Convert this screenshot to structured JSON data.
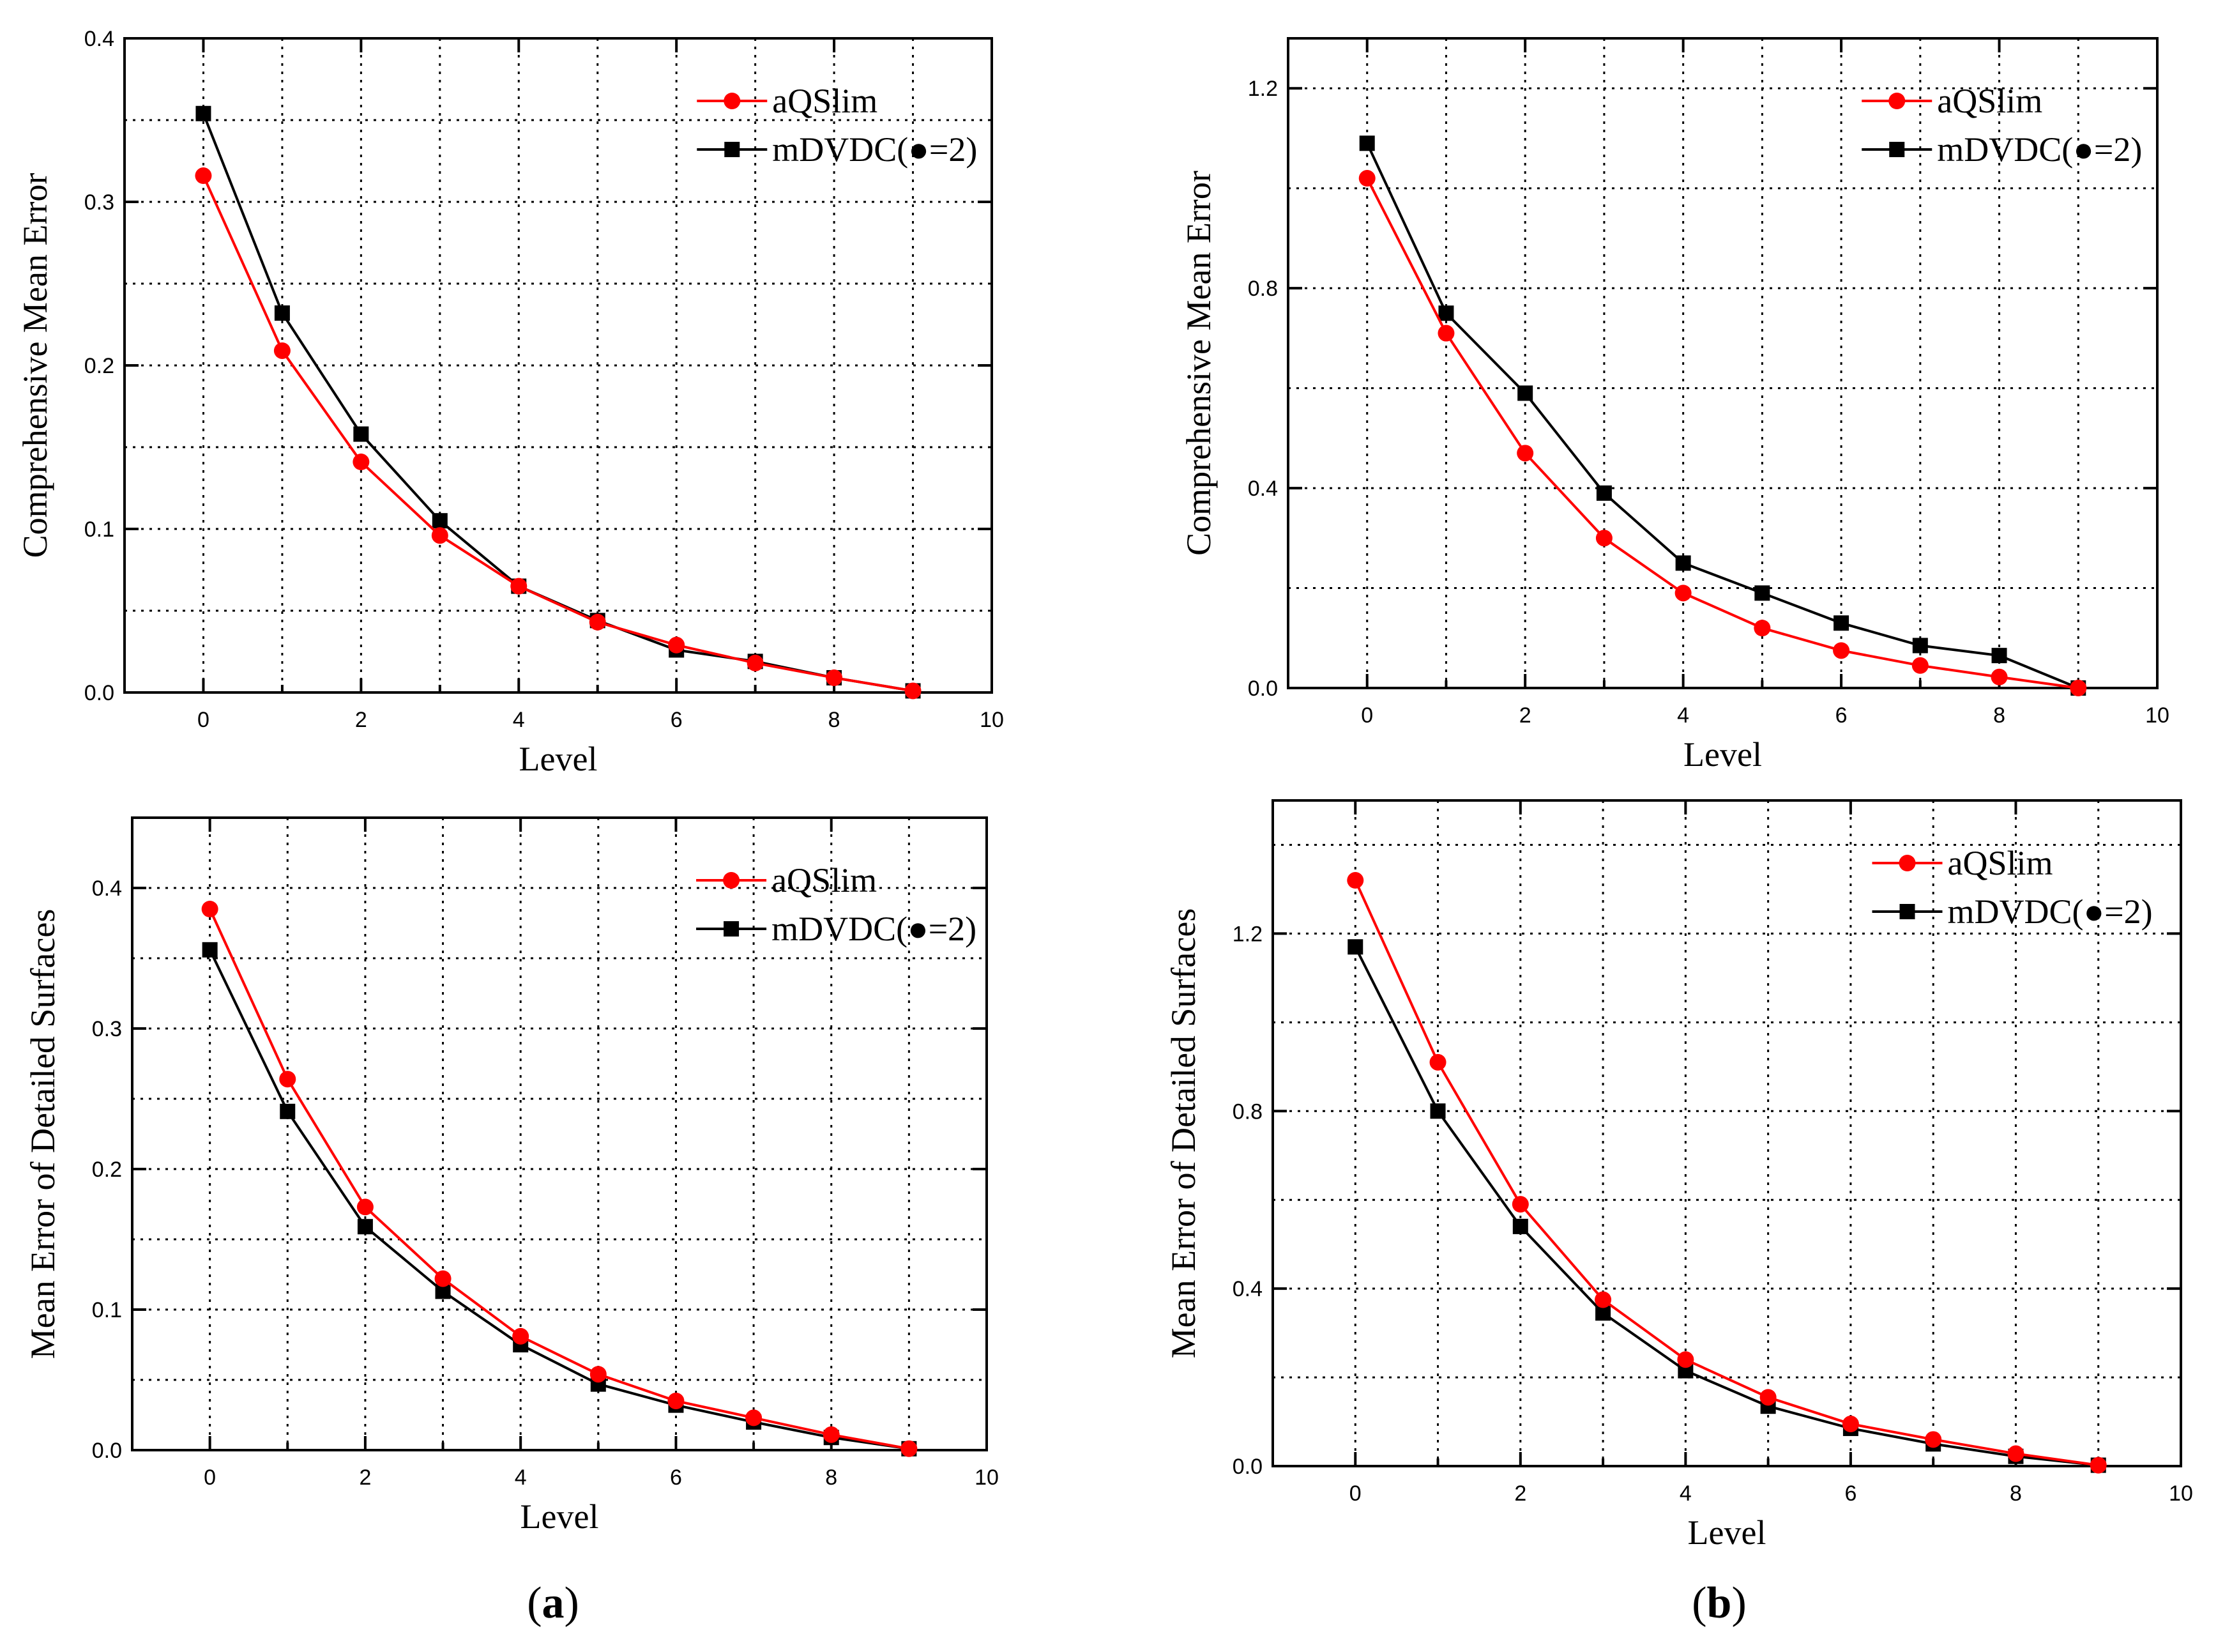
{
  "chart_data": [
    {
      "type": "line",
      "title": "",
      "xlabel": "Level",
      "ylabel": "Comprehensive Mean Error",
      "xlim": [
        -1,
        10
      ],
      "ylim": [
        0,
        0.4
      ],
      "xticks": [
        "0",
        "2",
        "4",
        "6",
        "8",
        "10"
      ],
      "yticks": [
        "0.0",
        "0.1",
        "0.2",
        "0.3",
        "0.4"
      ],
      "ytick_values": [
        0,
        0.1,
        0.2,
        0.3,
        0.4
      ],
      "grid": true,
      "legend": "top-right",
      "x": [
        0,
        1,
        2,
        3,
        4,
        5,
        6,
        7,
        8,
        9
      ],
      "series": [
        {
          "name": "aQSlim",
          "color": "#ff0000",
          "marker": "circle",
          "values": [
            0.316,
            0.209,
            0.141,
            0.096,
            0.065,
            0.043,
            0.029,
            0.018,
            0.009,
            0.001
          ]
        },
        {
          "name": "mDVDC(●=2)",
          "color": "#000000",
          "marker": "square",
          "values": [
            0.354,
            0.232,
            0.158,
            0.105,
            0.065,
            0.044,
            0.026,
            0.019,
            0.009,
            0.001
          ]
        }
      ]
    },
    {
      "type": "line",
      "title": "",
      "xlabel": "Level",
      "ylabel": "Comprehensive Mean Error",
      "xlim": [
        -1,
        10
      ],
      "ylim": [
        0,
        1.3
      ],
      "xticks": [
        "0",
        "2",
        "4",
        "6",
        "8",
        "10"
      ],
      "yticks": [
        "0.0",
        "0.4",
        "0.8",
        "1.2"
      ],
      "ytick_values": [
        0,
        0.4,
        0.8,
        1.2
      ],
      "grid": true,
      "legend": "top-right",
      "x": [
        0,
        1,
        2,
        3,
        4,
        5,
        6,
        7,
        8,
        9
      ],
      "series": [
        {
          "name": "aQSlim",
          "color": "#ff0000",
          "marker": "circle",
          "values": [
            1.02,
            0.71,
            0.47,
            0.3,
            0.19,
            0.12,
            0.075,
            0.045,
            0.022,
            0.0
          ]
        },
        {
          "name": "mDVDC(●=2)",
          "color": "#000000",
          "marker": "square",
          "values": [
            1.09,
            0.75,
            0.59,
            0.39,
            0.25,
            0.19,
            0.13,
            0.085,
            0.065,
            0.0
          ]
        }
      ]
    },
    {
      "type": "line",
      "title": "",
      "xlabel": "Level",
      "ylabel": "Mean Error of Detailed Surfaces",
      "xlim": [
        -1,
        10
      ],
      "ylim": [
        0,
        0.45
      ],
      "xticks": [
        "0",
        "2",
        "4",
        "6",
        "8",
        "10"
      ],
      "yticks": [
        "0.0",
        "0.1",
        "0.2",
        "0.3",
        "0.4"
      ],
      "ytick_values": [
        0,
        0.1,
        0.2,
        0.3,
        0.4
      ],
      "grid": true,
      "legend": "top-right",
      "x": [
        0,
        1,
        2,
        3,
        4,
        5,
        6,
        7,
        8,
        9
      ],
      "series": [
        {
          "name": "aQSlim",
          "color": "#ff0000",
          "marker": "circle",
          "values": [
            0.385,
            0.264,
            0.173,
            0.122,
            0.081,
            0.054,
            0.035,
            0.023,
            0.011,
            0.001
          ]
        },
        {
          "name": "mDVDC(●=2)",
          "color": "#000000",
          "marker": "square",
          "values": [
            0.356,
            0.241,
            0.159,
            0.113,
            0.075,
            0.047,
            0.032,
            0.02,
            0.009,
            0.001
          ]
        }
      ]
    },
    {
      "type": "line",
      "title": "",
      "xlabel": "Level",
      "ylabel": "Mean Error of Detailed Surfaces",
      "xlim": [
        -1,
        10
      ],
      "ylim": [
        0,
        1.5
      ],
      "xticks": [
        "0",
        "2",
        "4",
        "6",
        "8",
        "10"
      ],
      "yticks": [
        "0.0",
        "0.4",
        "0.8",
        "1.2"
      ],
      "ytick_values": [
        0,
        0.4,
        0.8,
        1.2
      ],
      "grid": true,
      "legend": "top-right",
      "x": [
        0,
        1,
        2,
        3,
        4,
        5,
        6,
        7,
        8,
        9
      ],
      "series": [
        {
          "name": "aQSlim",
          "color": "#ff0000",
          "marker": "circle",
          "values": [
            1.32,
            0.91,
            0.59,
            0.375,
            0.24,
            0.155,
            0.095,
            0.06,
            0.028,
            0.002
          ]
        },
        {
          "name": "mDVDC(●=2)",
          "color": "#000000",
          "marker": "square",
          "values": [
            1.17,
            0.8,
            0.54,
            0.345,
            0.215,
            0.135,
            0.085,
            0.05,
            0.022,
            0.002
          ]
        }
      ]
    }
  ],
  "panel_labels": {
    "a": {
      "open": "(",
      "letter": "a",
      "close": ")"
    },
    "b": {
      "open": "(",
      "letter": "b",
      "close": ")"
    }
  }
}
